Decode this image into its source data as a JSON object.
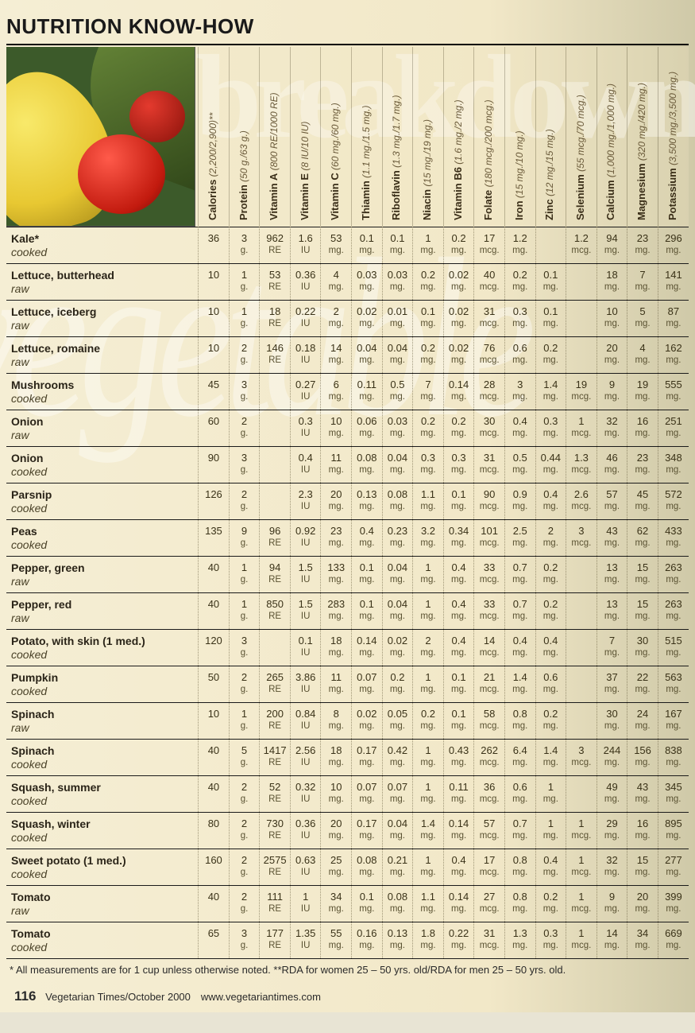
{
  "title": "NUTRITION KNOW-HOW",
  "bg_word1": "breakdown",
  "bg_word2": "vegetable",
  "columns": [
    {
      "label": "Calories",
      "rda": "(2,200/2,900)**"
    },
    {
      "label": "Protein",
      "rda": "(50 g./63 g.)"
    },
    {
      "label": "Vitamin A",
      "rda": "(800 RE/1000 RE)"
    },
    {
      "label": "Vitamin E",
      "rda": "(8 IU/10 IU)"
    },
    {
      "label": "Vitamin C",
      "rda": "(60 mg./60 mg.)"
    },
    {
      "label": "Thiamin",
      "rda": "(1.1 mg./1.5 mg.)"
    },
    {
      "label": "Riboflavin",
      "rda": "(1.3 mg./1.7 mg.)"
    },
    {
      "label": "Niacin",
      "rda": "(15 mg./19 mg.)"
    },
    {
      "label": "Vitamin B6",
      "rda": "(1.6 mg./2 mg.)"
    },
    {
      "label": "Folate",
      "rda": "(180 mcg./200 mcg.)"
    },
    {
      "label": "Iron",
      "rda": "(15 mg./10 mg.)"
    },
    {
      "label": "Zinc",
      "rda": "(12 mg./15 mg.)"
    },
    {
      "label": "Selenium",
      "rda": "(55 mcg./70 mcg.)"
    },
    {
      "label": "Calcium",
      "rda": "(1,000 mg./1,000 mg.)"
    },
    {
      "label": "Magnesium",
      "rda": "(320 mg./420 mg.)"
    },
    {
      "label": "Potassium",
      "rda": "(3,500 mg./3,500 mg.)"
    }
  ],
  "units": [
    "",
    "g.",
    "RE",
    "IU",
    "mg.",
    "mg.",
    "mg.",
    "mg.",
    "mg.",
    "mcg.",
    "mg.",
    "mg.",
    "mcg.",
    "mg.",
    "mg.",
    "mg."
  ],
  "rows": [
    {
      "name": "Kale*",
      "prep": "cooked",
      "v": [
        "36",
        "3",
        "962",
        "1.6",
        "53",
        "0.1",
        "0.1",
        "1",
        "0.2",
        "17",
        "1.2",
        "",
        "1.2",
        "94",
        "23",
        "296"
      ]
    },
    {
      "name": "Lettuce, butterhead",
      "prep": "raw",
      "v": [
        "10",
        "1",
        "53",
        "0.36",
        "4",
        "0.03",
        "0.03",
        "0.2",
        "0.02",
        "40",
        "0.2",
        "0.1",
        "",
        "18",
        "7",
        "141"
      ]
    },
    {
      "name": "Lettuce, iceberg",
      "prep": "raw",
      "v": [
        "10",
        "1",
        "18",
        "0.22",
        "2",
        "0.02",
        "0.01",
        "0.1",
        "0.02",
        "31",
        "0.3",
        "0.1",
        "",
        "10",
        "5",
        "87"
      ]
    },
    {
      "name": "Lettuce, romaine",
      "prep": "raw",
      "v": [
        "10",
        "2",
        "146",
        "0.18",
        "14",
        "0.04",
        "0.04",
        "0.2",
        "0.02",
        "76",
        "0.6",
        "0.2",
        "",
        "20",
        "4",
        "162"
      ]
    },
    {
      "name": "Mushrooms",
      "prep": "cooked",
      "v": [
        "45",
        "3",
        "",
        "0.27",
        "6",
        "0.11",
        "0.5",
        "7",
        "0.14",
        "28",
        "3",
        "1.4",
        "19",
        "9",
        "19",
        "555"
      ]
    },
    {
      "name": "Onion",
      "prep": "raw",
      "v": [
        "60",
        "2",
        "",
        "0.3",
        "10",
        "0.06",
        "0.03",
        "0.2",
        "0.2",
        "30",
        "0.4",
        "0.3",
        "1",
        "32",
        "16",
        "251"
      ]
    },
    {
      "name": "Onion",
      "prep": "cooked",
      "v": [
        "90",
        "3",
        "",
        "0.4",
        "11",
        "0.08",
        "0.04",
        "0.3",
        "0.3",
        "31",
        "0.5",
        "0.44",
        "1.3",
        "46",
        "23",
        "348"
      ]
    },
    {
      "name": "Parsnip",
      "prep": "cooked",
      "v": [
        "126",
        "2",
        "",
        "2.3",
        "20",
        "0.13",
        "0.08",
        "1.1",
        "0.1",
        "90",
        "0.9",
        "0.4",
        "2.6",
        "57",
        "45",
        "572"
      ]
    },
    {
      "name": "Peas",
      "prep": "cooked",
      "v": [
        "135",
        "9",
        "96",
        "0.92",
        "23",
        "0.4",
        "0.23",
        "3.2",
        "0.34",
        "101",
        "2.5",
        "2",
        "3",
        "43",
        "62",
        "433"
      ]
    },
    {
      "name": "Pepper, green",
      "prep": "raw",
      "v": [
        "40",
        "1",
        "94",
        "1.5",
        "133",
        "0.1",
        "0.04",
        "1",
        "0.4",
        "33",
        "0.7",
        "0.2",
        "",
        "13",
        "15",
        "263"
      ]
    },
    {
      "name": "Pepper, red",
      "prep": "raw",
      "v": [
        "40",
        "1",
        "850",
        "1.5",
        "283",
        "0.1",
        "0.04",
        "1",
        "0.4",
        "33",
        "0.7",
        "0.2",
        "",
        "13",
        "15",
        "263"
      ]
    },
    {
      "name": "Potato, with skin (1 med.)",
      "prep": "cooked",
      "v": [
        "120",
        "3",
        "",
        "0.1",
        "18",
        "0.14",
        "0.02",
        "2",
        "0.4",
        "14",
        "0.4",
        "0.4",
        "",
        "7",
        "30",
        "515"
      ]
    },
    {
      "name": "Pumpkin",
      "prep": "cooked",
      "v": [
        "50",
        "2",
        "265",
        "3.86",
        "11",
        "0.07",
        "0.2",
        "1",
        "0.1",
        "21",
        "1.4",
        "0.6",
        "",
        "37",
        "22",
        "563"
      ]
    },
    {
      "name": "Spinach",
      "prep": "raw",
      "v": [
        "10",
        "1",
        "200",
        "0.84",
        "8",
        "0.02",
        "0.05",
        "0.2",
        "0.1",
        "58",
        "0.8",
        "0.2",
        "",
        "30",
        "24",
        "167"
      ]
    },
    {
      "name": "Spinach",
      "prep": "cooked",
      "v": [
        "40",
        "5",
        "1417",
        "2.56",
        "18",
        "0.17",
        "0.42",
        "1",
        "0.43",
        "262",
        "6.4",
        "1.4",
        "3",
        "244",
        "156",
        "838"
      ]
    },
    {
      "name": "Squash, summer",
      "prep": "cooked",
      "v": [
        "40",
        "2",
        "52",
        "0.32",
        "10",
        "0.07",
        "0.07",
        "1",
        "0.11",
        "36",
        "0.6",
        "1",
        "",
        "49",
        "43",
        "345"
      ]
    },
    {
      "name": "Squash, winter",
      "prep": "cooked",
      "v": [
        "80",
        "2",
        "730",
        "0.36",
        "20",
        "0.17",
        "0.04",
        "1.4",
        "0.14",
        "57",
        "0.7",
        "1",
        "1",
        "29",
        "16",
        "895"
      ]
    },
    {
      "name": "Sweet potato (1 med.)",
      "prep": "cooked",
      "v": [
        "160",
        "2",
        "2575",
        "0.63",
        "25",
        "0.08",
        "0.21",
        "1",
        "0.4",
        "17",
        "0.8",
        "0.4",
        "1",
        "32",
        "15",
        "277"
      ]
    },
    {
      "name": "Tomato",
      "prep": "raw",
      "v": [
        "40",
        "2",
        "111",
        "1",
        "34",
        "0.1",
        "0.08",
        "1.1",
        "0.14",
        "27",
        "0.8",
        "0.2",
        "1",
        "9",
        "20",
        "399"
      ]
    },
    {
      "name": "Tomato",
      "prep": "cooked",
      "v": [
        "65",
        "3",
        "177",
        "1.35",
        "55",
        "0.16",
        "0.13",
        "1.8",
        "0.22",
        "31",
        "1.3",
        "0.3",
        "1",
        "14",
        "34",
        "669"
      ]
    }
  ],
  "footnote": "* All measurements are for 1 cup unless otherwise noted. **RDA for women 25 – 50 yrs. old/RDA for men 25 – 50 yrs. old.",
  "page_number": "116",
  "source_line": "Vegetarian Times/October 2000 www.vegetariantimes.com",
  "colors": {
    "page_bg_left": "#f5eed4",
    "page_bg_right": "#cfc9a8",
    "row_border": "#1a1a1a",
    "col_dotted": "rgba(90,80,50,0.55)",
    "header_text": "#3a2e18"
  }
}
